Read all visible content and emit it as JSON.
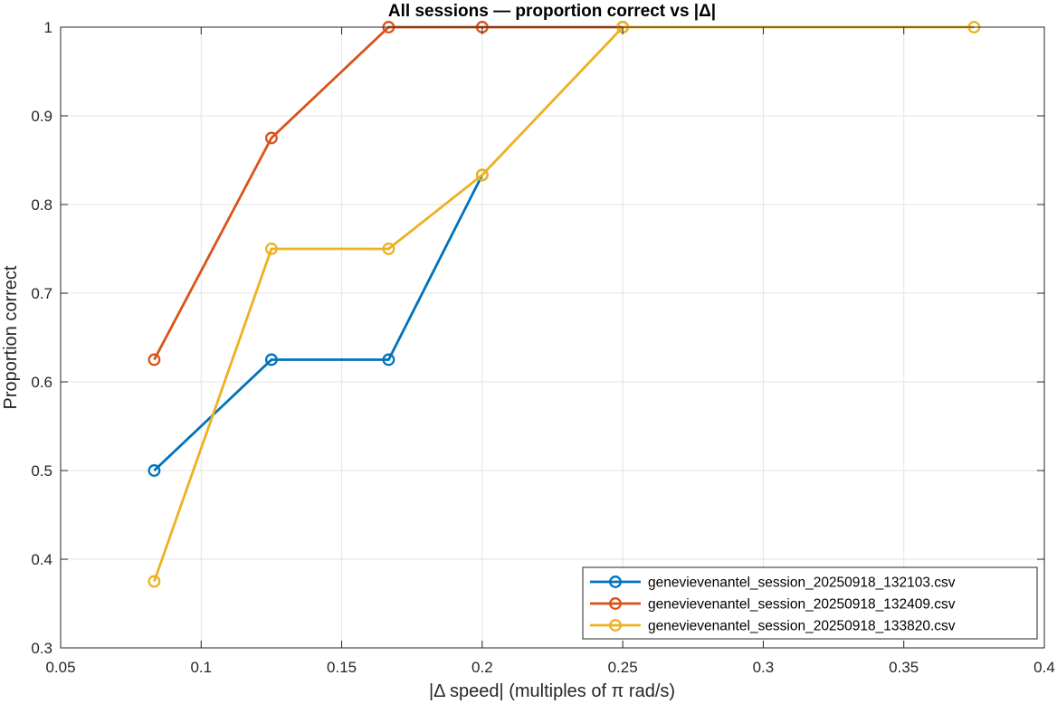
{
  "chart_data": {
    "type": "line",
    "title": "All  sessions  —  proportion  correct  vs  |Δ|",
    "xlabel": "|Δ  speed|  (multiples  of  π  rad/s)",
    "ylabel": "Proportion correct",
    "xlim": [
      0.05,
      0.4
    ],
    "ylim": [
      0.3,
      1
    ],
    "xticks": [
      0.05,
      0.1,
      0.15,
      0.2,
      0.25,
      0.3,
      0.35,
      0.4
    ],
    "xtick_labels": [
      "0.05",
      "0.1",
      "0.15",
      "0.2",
      "0.25",
      "0.3",
      "0.35",
      "0.4"
    ],
    "yticks": [
      0.3,
      0.4,
      0.5,
      0.6,
      0.7,
      0.8,
      0.9,
      1
    ],
    "ytick_labels": [
      "0.3",
      "0.4",
      "0.5",
      "0.6",
      "0.7",
      "0.8",
      "0.9",
      "1"
    ],
    "grid": true,
    "box": true,
    "legend_position": "bottom-right",
    "marker": "circle",
    "series": [
      {
        "name": "genevievenantel_session_20250918_132103.csv",
        "color": "#0072BD",
        "x": [
          0.0833,
          0.125,
          0.1667,
          0.2
        ],
        "y": [
          0.5,
          0.625,
          0.625,
          0.8333
        ]
      },
      {
        "name": "genevievenantel_session_20250918_132409.csv",
        "color": "#D95319",
        "x": [
          0.0833,
          0.125,
          0.1667,
          0.2,
          0.25
        ],
        "y": [
          0.625,
          0.875,
          1,
          1,
          1
        ]
      },
      {
        "name": "genevievenantel_session_20250918_133820.csv",
        "color": "#EDB120",
        "x": [
          0.0833,
          0.125,
          0.1667,
          0.2,
          0.25,
          0.375
        ],
        "y": [
          0.375,
          0.75,
          0.75,
          0.8333,
          1,
          1
        ]
      }
    ]
  }
}
